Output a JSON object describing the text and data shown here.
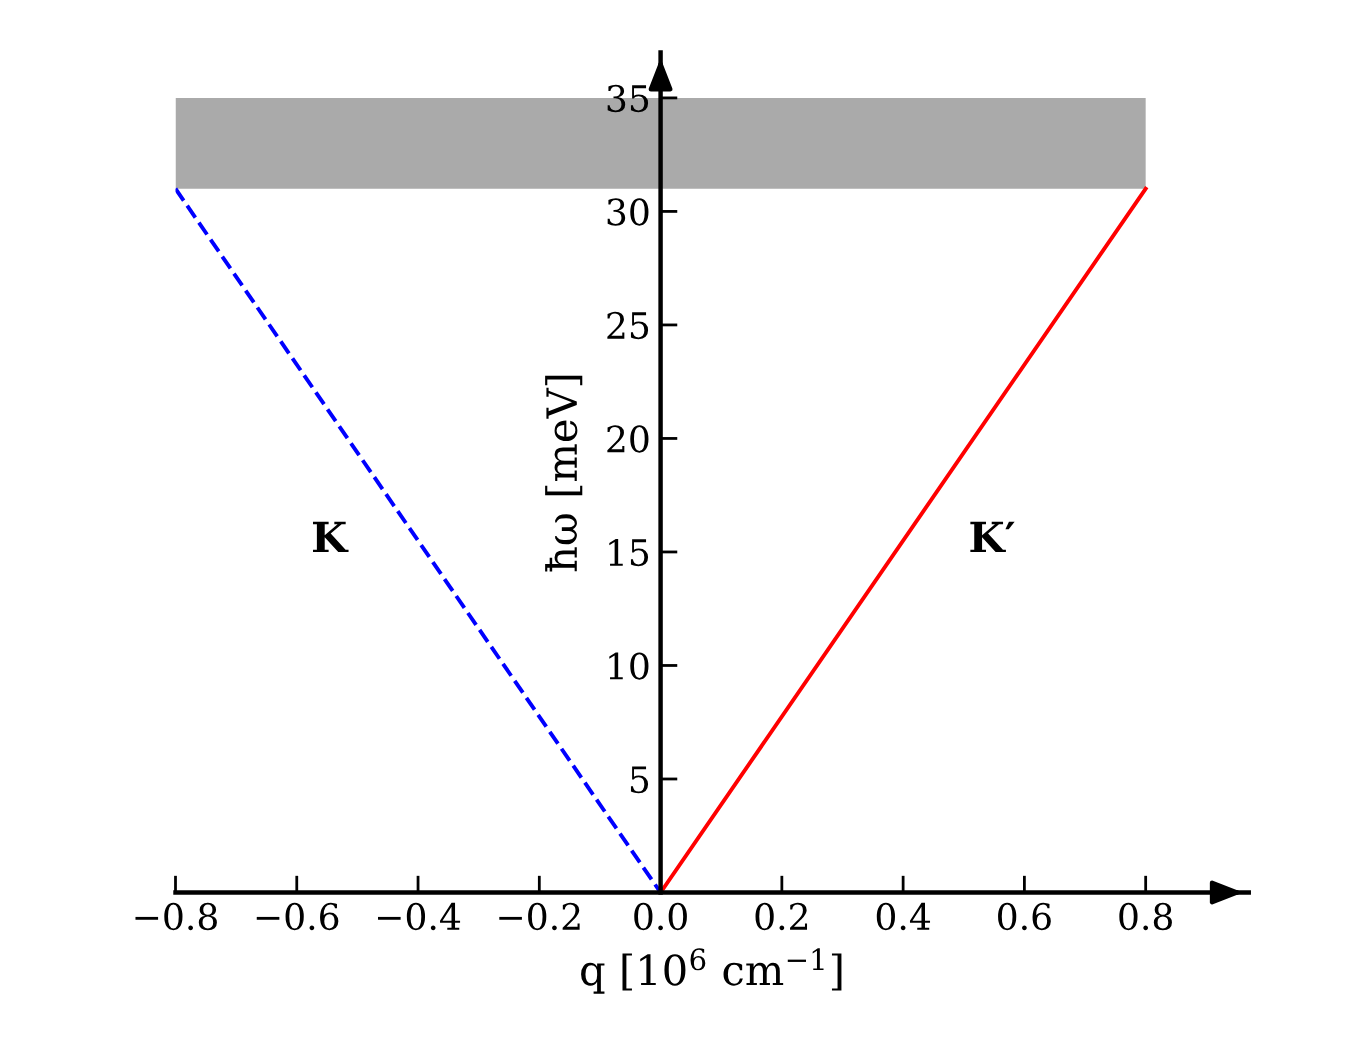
{
  "chart_data": {
    "type": "line",
    "xlabel": "q [10$^{6}$ cm$^{−1}$]",
    "ylabel": "ħω [meV]",
    "xlim": [
      -0.8,
      0.97
    ],
    "ylim": [
      0,
      37
    ],
    "xticks": [
      {
        "value": -0.8,
        "label": "−0.8"
      },
      {
        "value": -0.6,
        "label": "−0.6"
      },
      {
        "value": -0.4,
        "label": "−0.4"
      },
      {
        "value": -0.2,
        "label": "−0.2"
      },
      {
        "value": 0.0,
        "label": "0.0"
      },
      {
        "value": 0.2,
        "label": "0.2"
      },
      {
        "value": 0.4,
        "label": "0.4"
      },
      {
        "value": 0.6,
        "label": "0.6"
      },
      {
        "value": 0.8,
        "label": "0.8"
      }
    ],
    "yticks": [
      5,
      10,
      15,
      20,
      25,
      30,
      35
    ],
    "series": [
      {
        "name": "K",
        "x": [
          -0.8,
          0.0
        ],
        "values": [
          31,
          0
        ],
        "color": "#0000ff",
        "line_style": "dashed"
      },
      {
        "name": "K′",
        "x": [
          0.0,
          0.8
        ],
        "values": [
          0,
          31
        ],
        "color": "#ff0000",
        "line_style": "solid"
      }
    ],
    "bands": [
      {
        "axis": "y",
        "from": 31,
        "to": 35,
        "color": "#aaaaaa"
      }
    ],
    "grid": false,
    "legend": false,
    "marker": "none"
  }
}
